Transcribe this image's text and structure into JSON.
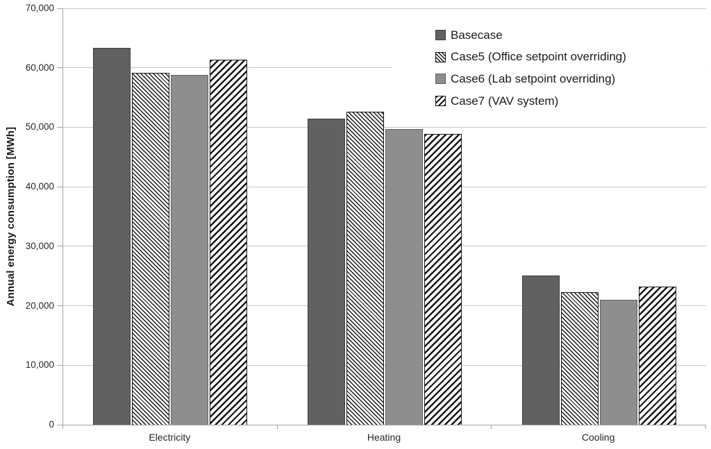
{
  "chart_data": {
    "type": "bar",
    "categories": [
      "Electricity",
      "Heating",
      "Cooling"
    ],
    "series": [
      {
        "name": "Basecase",
        "fill": "dark-gray-solid",
        "values": [
          63300,
          51400,
          25100
        ]
      },
      {
        "name": "Case5 (Office setpoint overriding)",
        "fill": "backslash-hatch",
        "values": [
          59200,
          52600,
          22300
        ]
      },
      {
        "name": "Case6 (Lab setpoint overriding)",
        "fill": "medium-gray-solid",
        "values": [
          58800,
          49700,
          21000
        ]
      },
      {
        "name": "Case7 (VAV system)",
        "fill": "forward-slash-hatch",
        "values": [
          61400,
          48900,
          23200
        ]
      }
    ],
    "title": "",
    "xlabel": "",
    "ylabel": "Annual energy consumption [MWh]",
    "ylim": [
      0,
      70000
    ],
    "ytick_step": 10000,
    "ytick_labels": [
      "0",
      "10,000",
      "20,000",
      "30,000",
      "40,000",
      "50,000",
      "60,000",
      "70,000"
    ],
    "grid": true,
    "legend_position": "top-right"
  },
  "colors": {
    "basecase_fill": "#616161",
    "case6_fill": "#8e8e8e",
    "hatch_ink": "#141414",
    "gridline": "#c6c6c6",
    "axis": "#a3a3a3",
    "text": "#1f1f1f"
  }
}
